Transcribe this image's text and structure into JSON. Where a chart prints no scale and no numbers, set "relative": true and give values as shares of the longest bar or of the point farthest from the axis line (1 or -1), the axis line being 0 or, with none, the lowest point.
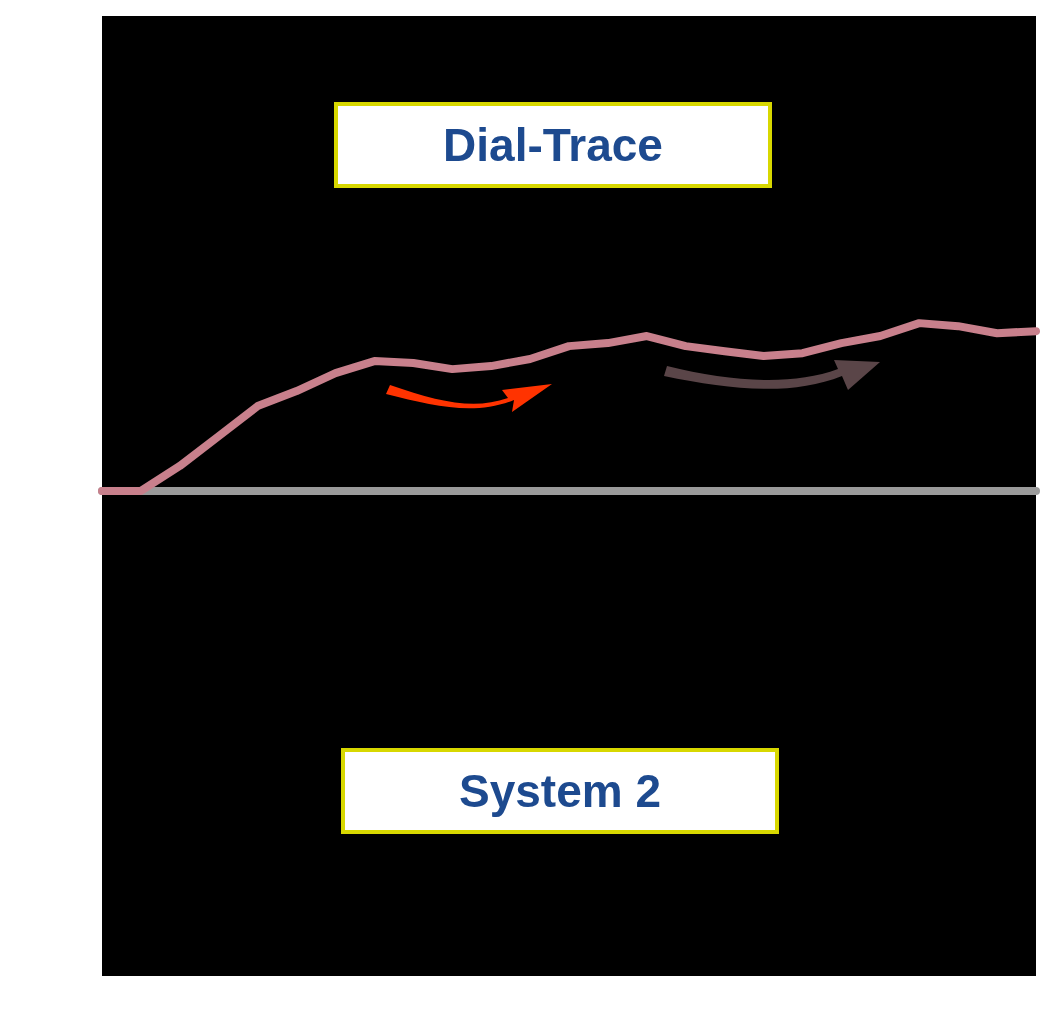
{
  "chart_data": {
    "type": "line",
    "relative": true,
    "annotations": [
      "Dial-Trace",
      "System 2"
    ],
    "categories": [
      null,
      null,
      null,
      null,
      null,
      null,
      null,
      null,
      null,
      null,
      null,
      null,
      null,
      null,
      null,
      null,
      null,
      null,
      null,
      null,
      null,
      null,
      null,
      null,
      null
    ],
    "series": [
      {
        "color": "#c8808c",
        "values": [
          0,
          0,
          0.149,
          0.327,
          0.506,
          0.595,
          0.702,
          0.774,
          0.762,
          0.726,
          0.744,
          0.786,
          0.863,
          0.881,
          0.923,
          0.863,
          0.833,
          0.804,
          0.821,
          0.881,
          0.923,
          1,
          0.982,
          0.94,
          0.952
        ]
      }
    ]
  }
}
